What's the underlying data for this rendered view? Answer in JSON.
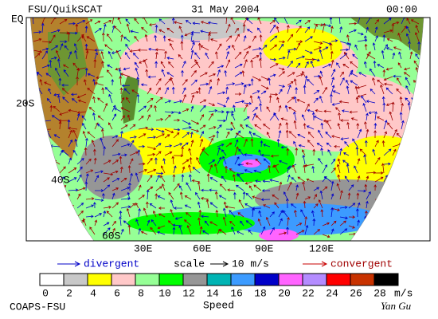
{
  "header": {
    "title": "FSU/QuikSCAT",
    "date": "31 May 2004",
    "time": "00:00"
  },
  "map": {
    "lat_labels": [
      "EQ",
      "20S",
      "40S",
      "60S"
    ],
    "lon_labels": [
      "30E",
      "60E",
      "90E",
      "120E"
    ]
  },
  "legend": {
    "divergent": "divergent",
    "scale": "scale",
    "scale_value": "10 m/s",
    "convergent": "convergent"
  },
  "colorbar": {
    "colors": [
      "#ffffff",
      "#c8c8c8",
      "#ffff00",
      "#ffc8c8",
      "#96ff96",
      "#00ff00",
      "#969696",
      "#00b4b4",
      "#3c9bff",
      "#0000c8",
      "#ff64ff",
      "#b48cff",
      "#ff0000",
      "#c83200",
      "#000000"
    ],
    "ticks": [
      0,
      2,
      4,
      6,
      8,
      10,
      12,
      14,
      16,
      18,
      20,
      22,
      24,
      26,
      28
    ],
    "unit": "m/s",
    "label": "Speed"
  },
  "footer": {
    "credit": "COAPS-FSU",
    "signature": "Yan Gu"
  }
}
